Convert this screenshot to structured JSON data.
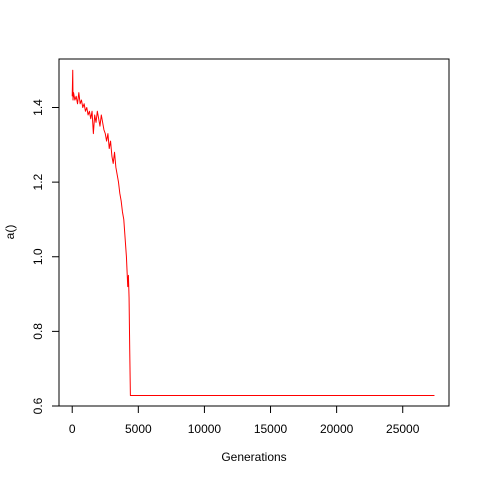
{
  "chart_data": {
    "type": "line",
    "title": "",
    "xlabel": "Generations",
    "ylabel": "a()",
    "xlim": [
      -1000,
      28500
    ],
    "ylim": [
      0.6,
      1.53
    ],
    "grid": false,
    "legend": "none",
    "line_color": "#ff0000",
    "x_ticks": [
      0,
      5000,
      10000,
      15000,
      20000,
      25000
    ],
    "x_tick_labels": [
      "0",
      "5000",
      "10000",
      "15000",
      "20000",
      "25000"
    ],
    "y_ticks": [
      0.6,
      0.8,
      1.0,
      1.2,
      1.4
    ],
    "y_tick_labels": [
      "0.6",
      "0.8",
      "1.0",
      "1.2",
      "1.4"
    ],
    "series": [
      {
        "values_x": [
          0,
          40,
          60,
          100,
          200,
          300,
          400,
          500,
          600,
          700,
          800,
          900,
          1000,
          1100,
          1200,
          1300,
          1400,
          1500,
          1600,
          1700,
          1800,
          1900,
          2000,
          2100,
          2200,
          2300,
          2400,
          2500,
          2600,
          2700,
          2800,
          2900,
          3000,
          3100,
          3200,
          3300,
          3400,
          3500,
          3600,
          3700,
          3800,
          3900,
          4000,
          4100,
          4150,
          4200,
          4250,
          4300,
          4350,
          4400,
          27400
        ],
        "values_y": [
          1.43,
          1.5,
          1.42,
          1.44,
          1.42,
          1.43,
          1.41,
          1.44,
          1.41,
          1.42,
          1.4,
          1.41,
          1.39,
          1.4,
          1.38,
          1.39,
          1.37,
          1.39,
          1.33,
          1.38,
          1.36,
          1.39,
          1.37,
          1.35,
          1.38,
          1.36,
          1.34,
          1.33,
          1.31,
          1.33,
          1.29,
          1.31,
          1.27,
          1.25,
          1.28,
          1.24,
          1.22,
          1.2,
          1.17,
          1.15,
          1.12,
          1.1,
          1.05,
          1.0,
          0.96,
          0.92,
          0.95,
          0.89,
          0.75,
          0.628,
          0.628
        ]
      }
    ]
  }
}
